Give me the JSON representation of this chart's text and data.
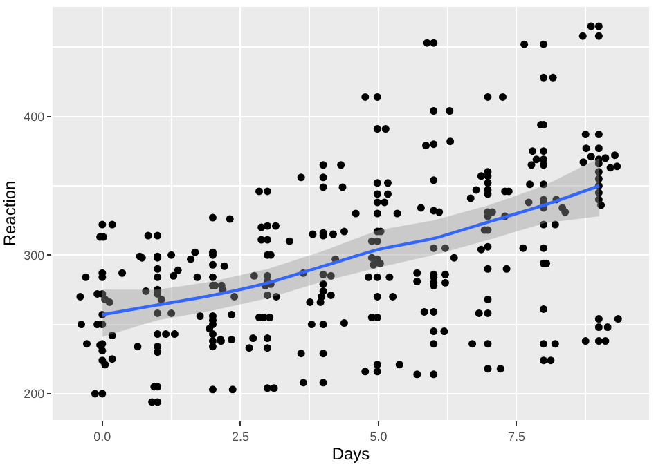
{
  "chart_data": {
    "type": "scatter",
    "xlabel": "Days",
    "ylabel": "Reaction",
    "xlim": [
      -0.9,
      9.9
    ],
    "ylim": [
      181,
      479
    ],
    "xticks": [
      {
        "value": 0,
        "label": "0.0"
      },
      {
        "value": 2.5,
        "label": "2.5"
      },
      {
        "value": 5,
        "label": "5.0"
      },
      {
        "value": 7.5,
        "label": "7.5"
      }
    ],
    "yticks": [
      200,
      300,
      400
    ],
    "grid": true,
    "series": [
      {
        "color": "#000000",
        "marker": "circle",
        "x": [
          -0.4,
          -0.3,
          -0.38,
          -0.28,
          0,
          0.18,
          -0.04,
          0.02,
          0,
          0,
          -0.09,
          0,
          0.05,
          0.13,
          0,
          -0.09,
          0,
          0.18,
          0,
          -0.04,
          0,
          0,
          0.05,
          0.18,
          -0.13,
          0,
          0.36,
          0.64,
          0.68,
          0.72,
          0.83,
          1,
          1,
          1,
          1,
          1,
          0.79,
          1,
          1,
          1.07,
          1,
          1.25,
          1,
          1.15,
          1,
          1,
          1,
          0.94,
          0.9,
          1,
          1.25,
          1.37,
          1.29,
          1.31,
          1.6,
          1.68,
          1.72,
          1.77,
          2,
          2,
          2,
          2,
          2,
          2,
          2.04,
          2,
          2,
          2,
          1.94,
          2,
          2,
          2,
          2,
          2.16,
          2.15,
          2.31,
          2.21,
          2.18,
          2.39,
          2.34,
          2.14,
          2.34,
          2.36,
          2.84,
          2.99,
          2.88,
          2.99,
          3.14,
          2.88,
          2.99,
          2.99,
          3.05,
          2.75,
          2.99,
          2.99,
          2.95,
          3.05,
          2.99,
          3.15,
          2.84,
          2.92,
          3.03,
          2.73,
          2.99,
          2.66,
          2.99,
          2.99,
          3.11,
          3.39,
          3.6,
          4,
          4,
          4,
          4.32,
          4.35,
          4.59,
          4,
          4,
          3.81,
          4.18,
          4.38,
          4.22,
          3.64,
          4,
          4.14,
          4,
          4,
          3.97,
          4.14,
          3.76,
          3.95,
          3.79,
          4,
          4.38,
          3.6,
          4,
          3.64,
          4,
          4.76,
          4.98,
          4.98,
          5.13,
          4.98,
          5.17,
          4.98,
          5.17,
          4.98,
          5.11,
          4.98,
          5.34,
          4.98,
          5.04,
          4.88,
          4.98,
          4.88,
          4.98,
          5.03,
          4.91,
          4.82,
          4.98,
          5.2,
          4.98,
          5.26,
          4.88,
          4.98,
          4.76,
          4.98,
          4.98,
          5.38,
          5.7,
          5.77,
          5.7,
          5.7,
          5.83,
          5.86,
          5.88,
          6.0,
          6.0,
          6.29,
          6.0,
          6.3,
          6.0,
          6.0,
          6.1,
          6.0,
          6.0,
          6.21,
          6.0,
          6.0,
          6.21,
          6.0,
          6.21,
          6.37,
          6.0,
          6.0,
          6.19,
          6.0,
          6.0,
          6.98,
          7.25,
          6.86,
          6.98,
          6.98,
          6.77,
          6.67,
          6.98,
          6.98,
          6.98,
          7.29,
          7.36,
          6.98,
          7.06,
          6.98,
          7.29,
          6.92,
          6.98,
          6.86,
          6.98,
          6.98,
          7.32,
          6.98,
          6.82,
          6.98,
          6.7,
          6.98,
          6.98,
          7.21,
          7.62,
          7.64,
          7.99,
          7.99,
          8.16,
          7.94,
          7.99,
          7.79,
          7.99,
          7.86,
          7.99,
          7.77,
          7.99,
          7.74,
          7.99,
          7.99,
          8.22,
          7.72,
          7.99,
          7.99,
          8.33,
          8.38,
          7.99,
          8.2,
          7.99,
          7.99,
          8.04,
          7.99,
          7.99,
          8.2,
          7.99,
          8.12,
          8.7,
          8.85,
          8.99,
          8.99,
          8.75,
          8.99,
          8.76,
          8.99,
          8.85,
          8.99,
          9.11,
          9.28,
          8.71,
          9.2,
          9.32,
          8.99,
          8.99,
          8.99,
          8.99,
          8.99,
          8.99,
          9.03,
          8.99,
          9.34,
          8.99,
          9.15,
          8.75,
          8.99,
          9.11
        ],
        "values": [
          270,
          284,
          250,
          236,
          322,
          322,
          313,
          313,
          287,
          284,
          272,
          272,
          268,
          266,
          257,
          250,
          250,
          242,
          236,
          235,
          231,
          224,
          221,
          225,
          200,
          200,
          287,
          234,
          299,
          298,
          314,
          314,
          299,
          298,
          290,
          284,
          274,
          275,
          272,
          268,
          258,
          258,
          243,
          243,
          234,
          230,
          205,
          205,
          194,
          194,
          300,
          289,
          285,
          243,
          297,
          302,
          284,
          256,
          327,
          302,
          300,
          293,
          284,
          278,
          278,
          256,
          253,
          250,
          247,
          243,
          238,
          234,
          203,
          278,
          238,
          326,
          292,
          275,
          270,
          257,
          239,
          239,
          203,
          346,
          346,
          320,
          321,
          321,
          311,
          311,
          300,
          300,
          285,
          285,
          281,
          278,
          279,
          271,
          270,
          255,
          255,
          255,
          240,
          240,
          233,
          233,
          204,
          204,
          310,
          356,
          365,
          356,
          349,
          365,
          349,
          330,
          316,
          314,
          315,
          315,
          317,
          297,
          287,
          286,
          285,
          279,
          274,
          270,
          271,
          266,
          266,
          250,
          250,
          251,
          229,
          229,
          208,
          208,
          414,
          414,
          391,
          391,
          352,
          352,
          344,
          344,
          338,
          338,
          330,
          330,
          317,
          317,
          310,
          310,
          298,
          297,
          294,
          293,
          284,
          284,
          284,
          270,
          270,
          255,
          255,
          216,
          216,
          221,
          221,
          214,
          334,
          287,
          281,
          259,
          379,
          453,
          453,
          404,
          404,
          380,
          382,
          354,
          332,
          331,
          286,
          284,
          286,
          280,
          278,
          280,
          305,
          305,
          298,
          259,
          245,
          245,
          236,
          214,
          414,
          414,
          357,
          360,
          357,
          347,
          341,
          352,
          347,
          344,
          346,
          346,
          331,
          331,
          328,
          328,
          318,
          318,
          304,
          306,
          290,
          290,
          268,
          258,
          258,
          236,
          236,
          218,
          218,
          305,
          452,
          452,
          428,
          428,
          394,
          394,
          375,
          375,
          369,
          369,
          365,
          365,
          351,
          351,
          340,
          340,
          338,
          338,
          334,
          334,
          331,
          322,
          322,
          305,
          294,
          294,
          261,
          236,
          236,
          224,
          224,
          458,
          465,
          465,
          458,
          387,
          387,
          377,
          377,
          371,
          369,
          370,
          372,
          367,
          363,
          364,
          366,
          360,
          355,
          350,
          345,
          340,
          336,
          254,
          254,
          248,
          248,
          238,
          238,
          238
        ]
      },
      {
        "type": "line",
        "color": "#3366ff",
        "marker": "none",
        "x": [
          0,
          1,
          2,
          3,
          4,
          5,
          6,
          7,
          8,
          9
        ],
        "values": [
          257,
          264,
          271,
          280,
          292,
          304,
          312,
          324,
          336,
          350
        ],
        "lower": [
          241,
          253,
          260,
          269,
          281,
          291,
          300,
          311,
          323,
          328
        ],
        "upper": [
          275,
          275,
          281,
          290,
          303,
          318,
          325,
          336,
          350,
          370
        ]
      }
    ]
  }
}
